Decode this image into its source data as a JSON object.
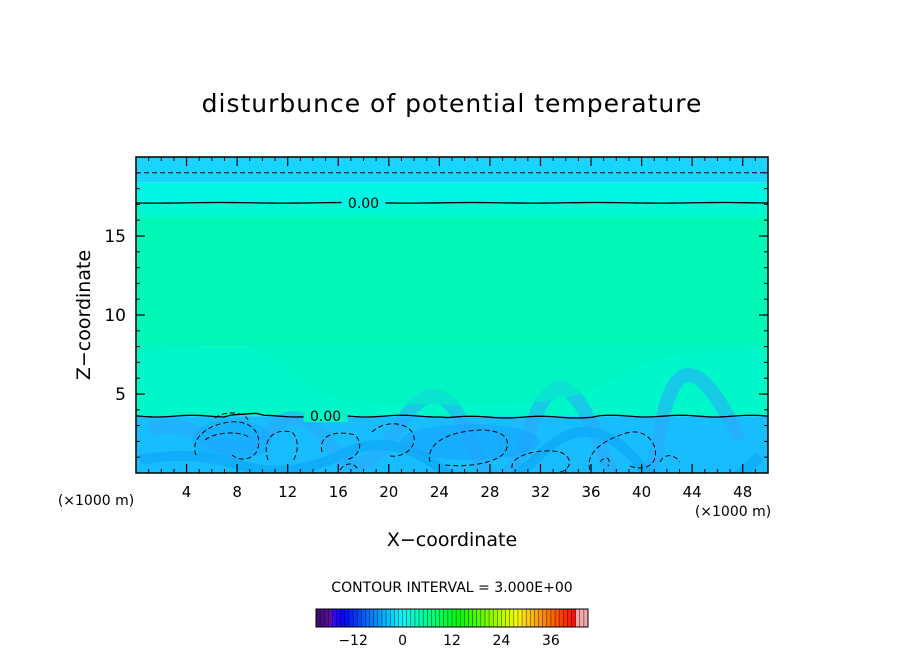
{
  "chart_data": {
    "type": "heatmap",
    "title": "disturbunce of potential temperature",
    "xlabel": "X−coordinate",
    "ylabel": "Z−coordinate",
    "x_unit_left": "(×1000 m)",
    "x_unit_right": "(×1000 m)",
    "xlim": [
      0,
      50
    ],
    "ylim": [
      0,
      20
    ],
    "x_ticks": [
      4,
      8,
      12,
      16,
      20,
      24,
      28,
      32,
      36,
      40,
      44,
      48
    ],
    "x_tick_labels": [
      "4",
      "8",
      "12",
      "16",
      "20",
      "24",
      "28",
      "32",
      "36",
      "40",
      "44",
      "48"
    ],
    "y_ticks": [
      5,
      10,
      15
    ],
    "y_tick_labels": [
      "5",
      "10",
      "15"
    ],
    "contour_labels": [
      {
        "text": "0.00",
        "x": 18,
        "z": 17.1
      },
      {
        "text": "0.00",
        "x": 15,
        "z": 3.6
      }
    ],
    "contour_interval_text": "CONTOUR INTERVAL = 3.000E+00",
    "zero_contour_levels_z": [
      3.6,
      17.1
    ],
    "negative_contour_level_z": 19.0,
    "field_bands": [
      {
        "z0": 0,
        "z1": 3.6,
        "color": "#18bdff"
      },
      {
        "z0": 3.6,
        "z1": 8.0,
        "color": "#00f7c9"
      },
      {
        "z0": 8.0,
        "z1": 16.2,
        "color": "#00f7b5"
      },
      {
        "z0": 16.2,
        "z1": 17.1,
        "color": "#00f7cf"
      },
      {
        "z0": 17.1,
        "z1": 18.4,
        "color": "#00f5e2"
      },
      {
        "z0": 18.4,
        "z1": 20.0,
        "color": "#1ad3ff"
      }
    ],
    "colorbar": {
      "min": -21,
      "max": 45,
      "ticks": [
        -12,
        0,
        12,
        24,
        36
      ],
      "tick_labels": [
        "−12",
        "0",
        "12",
        "24",
        "36"
      ]
    }
  }
}
